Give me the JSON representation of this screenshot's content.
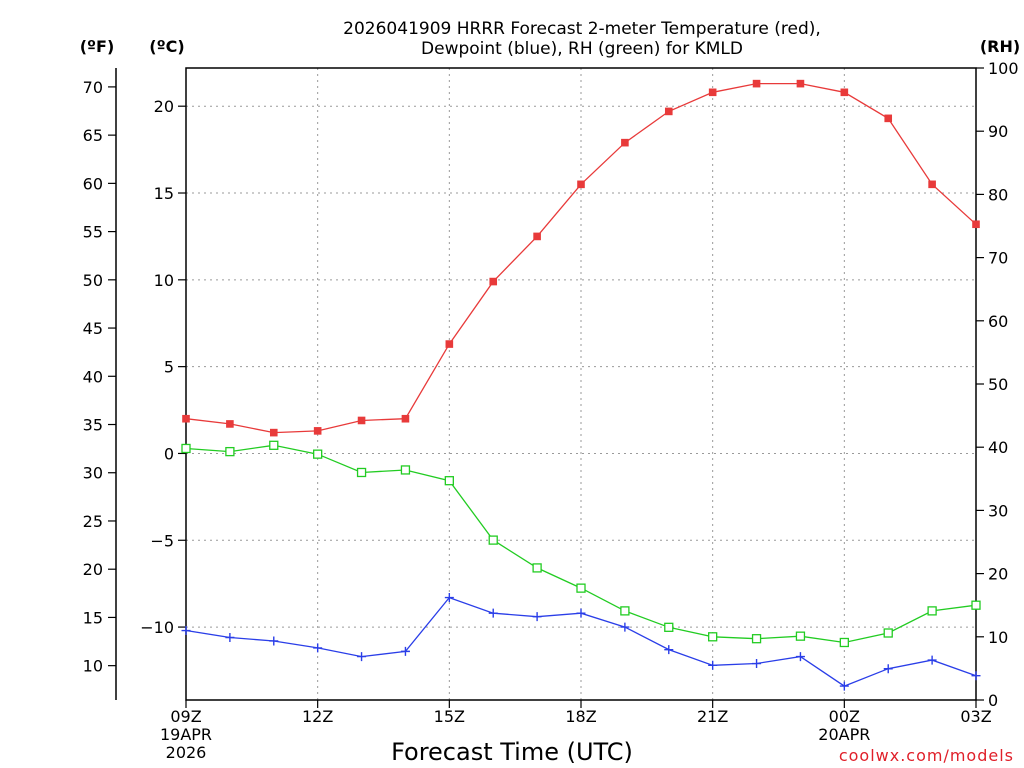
{
  "chart_data": {
    "type": "line",
    "title_line1": "2026041909 HRRR Forecast 2-meter Temperature (red),",
    "title_line2": "Dewpoint (blue), RH (green) for KMLD",
    "xlabel": "Forecast Time (UTC)",
    "credit": "coolwx.com/models",
    "unit_f": "(ºF)",
    "unit_c": "(ºC)",
    "unit_rh": "(RH)",
    "x_ticks": [
      {
        "hour": 0,
        "label": "09Z",
        "sub1": "19APR",
        "sub2": "2026"
      },
      {
        "hour": 3,
        "label": "12Z",
        "sub1": "",
        "sub2": ""
      },
      {
        "hour": 6,
        "label": "15Z",
        "sub1": "",
        "sub2": ""
      },
      {
        "hour": 9,
        "label": "18Z",
        "sub1": "",
        "sub2": ""
      },
      {
        "hour": 12,
        "label": "21Z",
        "sub1": "",
        "sub2": ""
      },
      {
        "hour": 15,
        "label": "00Z",
        "sub1": "20APR",
        "sub2": ""
      },
      {
        "hour": 18,
        "label": "03Z",
        "sub1": "",
        "sub2": ""
      }
    ],
    "xlim": [
      0,
      18
    ],
    "ylim_c": [
      -14.2,
      22.2
    ],
    "ylim_rh": [
      0,
      100
    ],
    "c_ticks": [
      20,
      15,
      10,
      5,
      0,
      -5,
      -10
    ],
    "f_ticks": [
      70,
      65,
      60,
      55,
      50,
      45,
      40,
      35,
      30,
      25,
      20,
      15,
      10
    ],
    "rh_ticks": [
      100,
      90,
      80,
      70,
      60,
      50,
      40,
      30,
      20,
      10,
      0
    ],
    "series": [
      {
        "name": "Temperature",
        "units": "C",
        "color": "#e83a3a",
        "marker": "filled-square",
        "values": [
          2.0,
          1.7,
          1.2,
          1.3,
          1.9,
          2.0,
          6.3,
          9.9,
          12.5,
          15.5,
          17.9,
          19.7,
          20.8,
          21.3,
          21.3,
          20.8,
          19.3,
          15.5,
          13.2
        ]
      },
      {
        "name": "Dewpoint",
        "units": "C",
        "color": "#2a3ee8",
        "marker": "plus",
        "values": [
          -10.2,
          -10.6,
          -10.8,
          -11.2,
          -11.7,
          -11.4,
          -8.3,
          -9.2,
          -9.4,
          -9.2,
          -10.0,
          -11.3,
          -12.2,
          -12.1,
          -11.7,
          -13.4,
          -12.4,
          -11.9,
          -12.8
        ]
      },
      {
        "name": "RH",
        "units": "%",
        "color": "#22cc22",
        "marker": "open-square",
        "values": [
          39.8,
          39.3,
          40.3,
          38.9,
          36.0,
          36.4,
          34.7,
          25.3,
          20.9,
          17.7,
          14.1,
          11.5,
          10.0,
          9.7,
          10.1,
          9.1,
          10.6,
          14.1,
          15.0
        ]
      }
    ]
  }
}
